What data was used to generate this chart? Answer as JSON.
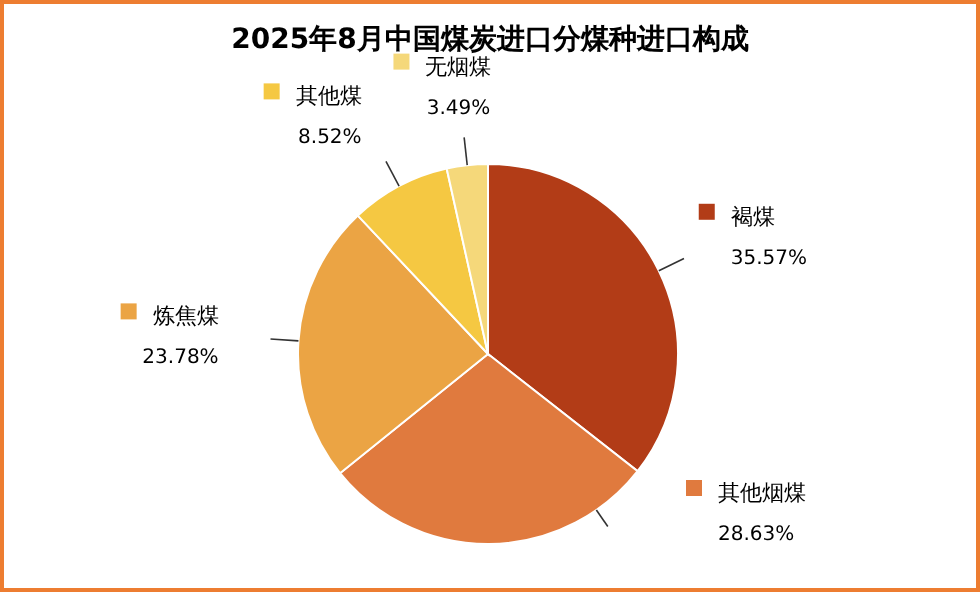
{
  "chart_data": {
    "type": "pie",
    "title": "2025年8月中国煤炭进口分煤种进口构成",
    "categories": [
      "褐煤",
      "其他烟煤",
      "炼焦煤",
      "其他煤",
      "无烟煤"
    ],
    "values": [
      35.57,
      28.63,
      23.78,
      8.52,
      3.49
    ],
    "colors": [
      "#b23c17",
      "#e07a3e",
      "#eba444",
      "#f5c842",
      "#f5d87a"
    ],
    "value_labels": [
      "35.57%",
      "28.63%",
      "23.78%",
      "8.52%",
      "3.49%"
    ],
    "legend": "top"
  }
}
